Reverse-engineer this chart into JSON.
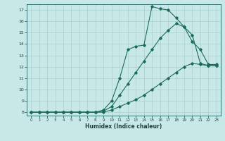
{
  "xlabel": "Humidex (Indice chaleur)",
  "bg_color": "#c8e8e8",
  "grid_color": "#a8d0d0",
  "line_color": "#1a6b5a",
  "xlim": [
    -0.5,
    23.5
  ],
  "ylim": [
    7.7,
    17.5
  ],
  "xticks": [
    0,
    1,
    2,
    3,
    4,
    5,
    6,
    7,
    8,
    9,
    10,
    11,
    12,
    13,
    14,
    15,
    16,
    17,
    18,
    19,
    20,
    21,
    22,
    23
  ],
  "yticks": [
    8,
    9,
    10,
    11,
    12,
    13,
    14,
    15,
    16,
    17
  ],
  "line1_x": [
    0,
    1,
    2,
    3,
    4,
    5,
    6,
    7,
    8,
    9,
    10,
    11,
    12,
    13,
    14,
    15,
    16,
    17,
    18,
    19,
    20,
    21,
    22,
    23
  ],
  "line1_y": [
    8,
    8,
    8,
    8,
    8,
    8,
    8,
    8,
    8,
    8.2,
    9.0,
    11.0,
    13.5,
    13.8,
    13.9,
    17.3,
    17.1,
    17.0,
    16.3,
    15.5,
    14.2,
    13.5,
    12.2,
    12.2
  ],
  "line2_x": [
    0,
    1,
    2,
    3,
    4,
    5,
    6,
    7,
    8,
    9,
    10,
    11,
    12,
    13,
    14,
    15,
    16,
    17,
    18,
    19,
    20,
    21,
    22,
    23
  ],
  "line2_y": [
    8,
    8,
    8,
    8,
    8,
    8,
    8,
    8,
    8,
    8.1,
    8.5,
    9.5,
    10.5,
    11.5,
    12.5,
    13.5,
    14.5,
    15.2,
    15.8,
    15.5,
    14.8,
    12.3,
    12.1,
    12.1
  ],
  "line3_x": [
    0,
    1,
    2,
    3,
    4,
    5,
    6,
    7,
    8,
    9,
    10,
    11,
    12,
    13,
    14,
    15,
    16,
    17,
    18,
    19,
    20,
    21,
    22,
    23
  ],
  "line3_y": [
    8,
    8,
    8,
    8,
    8,
    8,
    8,
    8,
    8,
    8.0,
    8.2,
    8.5,
    8.8,
    9.1,
    9.5,
    10.0,
    10.5,
    11.0,
    11.5,
    12.0,
    12.3,
    12.2,
    12.1,
    12.1
  ]
}
